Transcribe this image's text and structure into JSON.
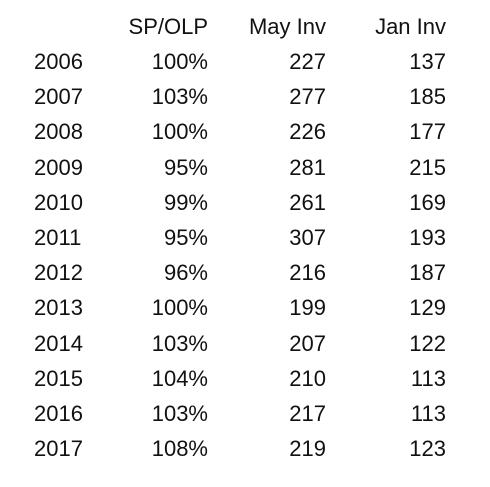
{
  "chart_data": {
    "type": "table",
    "columns": [
      "",
      "SP/OLP",
      "May Inv",
      "Jan Inv"
    ],
    "rows": [
      [
        "2006",
        "100%",
        "227",
        "137"
      ],
      [
        "2007",
        "103%",
        "277",
        "185"
      ],
      [
        "2008",
        "100%",
        "226",
        "177"
      ],
      [
        "2009",
        "95%",
        "281",
        "215"
      ],
      [
        "2010",
        "99%",
        "261",
        "169"
      ],
      [
        "2011",
        "95%",
        "307",
        "193"
      ],
      [
        "2012",
        "96%",
        "216",
        "187"
      ],
      [
        "2013",
        "100%",
        "199",
        "129"
      ],
      [
        "2014",
        "103%",
        "207",
        "122"
      ],
      [
        "2015",
        "104%",
        "210",
        "113"
      ],
      [
        "2016",
        "103%",
        "217",
        "113"
      ],
      [
        "2017",
        "108%",
        "219",
        "123"
      ]
    ]
  }
}
